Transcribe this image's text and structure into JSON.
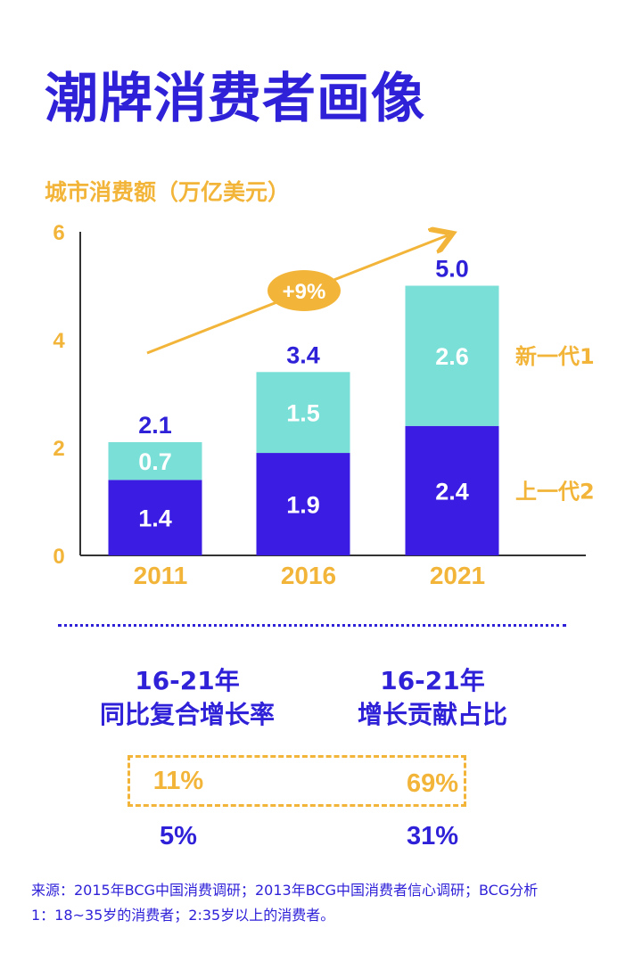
{
  "title": "潮牌消费者画像",
  "chart_data": {
    "type": "bar",
    "subtype": "stacked",
    "title": "城市消费额（万亿美元）",
    "categories": [
      "2011",
      "2016",
      "2021"
    ],
    "series": [
      {
        "name": "上一代2",
        "values": [
          1.4,
          1.9,
          2.4
        ],
        "color": "#3a1ce2"
      },
      {
        "name": "新一代1",
        "values": [
          0.7,
          1.5,
          2.6
        ],
        "color": "#7adfd7"
      }
    ],
    "totals": [
      "2.1",
      "3.4",
      "5.0"
    ],
    "value_labels": [
      [
        "1.4",
        "1.9",
        "2.4"
      ],
      [
        "0.7",
        "1.5",
        "2.6"
      ]
    ],
    "yticks": [
      "0",
      "2",
      "4",
      "6"
    ],
    "ylim": [
      0,
      6
    ],
    "growth_annotation": "+9%",
    "legend_position": "right"
  },
  "stats": {
    "left": {
      "heading_line1": "16-21年",
      "heading_line2": "同比复合增长率",
      "new_gen": "11%",
      "old_gen": "5%"
    },
    "right": {
      "heading_line1": "16-21年",
      "heading_line2": "增长贡献占比",
      "new_gen": "69%",
      "old_gen": "31%"
    }
  },
  "source": {
    "line1": "来源：2015年BCG中国消费调研；2013年BCG中国消费者信心调研；BCG分析",
    "line2": "1：18~35岁的消费者；2:35岁以上的消费者。"
  },
  "colors": {
    "primary": "#2f21d8",
    "accent": "#f2b53a",
    "teal": "#7adfd7",
    "bar_dark": "#3a1ce2"
  }
}
